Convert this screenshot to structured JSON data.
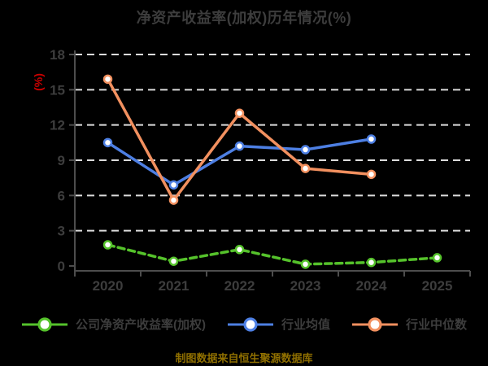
{
  "title": "净资产收益率(加权)历年情况(%)",
  "footer_note": "制图数据来自恒生聚源数据库",
  "colors": {
    "background": "#000000",
    "title_text": "#3d3d3d",
    "axis_text": "#3d3d3d",
    "axis_line": "#4d4d4d",
    "gridline": "#dcdcdc",
    "unit_label": "#cc0000",
    "footer_text": "#8f6f00",
    "marker_fill": "#ffffff"
  },
  "chart_data": {
    "type": "line",
    "title": "净资产收益率(加权)历年情况(%)",
    "ylabel": "(%)",
    "categories": [
      "2020",
      "2021",
      "2022",
      "2023",
      "2024",
      "2025"
    ],
    "series": [
      {
        "name": "公司净资产收益率(加权)",
        "color": "#55c22b",
        "line_style": "dashed",
        "values": [
          1.8,
          0.4,
          1.4,
          0.15,
          0.3,
          0.7
        ]
      },
      {
        "name": "行业均值",
        "color": "#4d7fe3",
        "line_style": "solid",
        "values": [
          10.5,
          6.9,
          10.2,
          9.9,
          10.8,
          null
        ]
      },
      {
        "name": "行业中位数",
        "color": "#f2905f",
        "line_style": "solid",
        "values": [
          15.9,
          5.6,
          13.0,
          8.3,
          7.8,
          null
        ]
      }
    ],
    "ylim": [
      0,
      18
    ],
    "yticks": [
      0,
      3,
      6,
      9,
      12,
      15,
      18
    ],
    "grid": true,
    "grid_style": "dashed",
    "legend_position": "bottom"
  }
}
